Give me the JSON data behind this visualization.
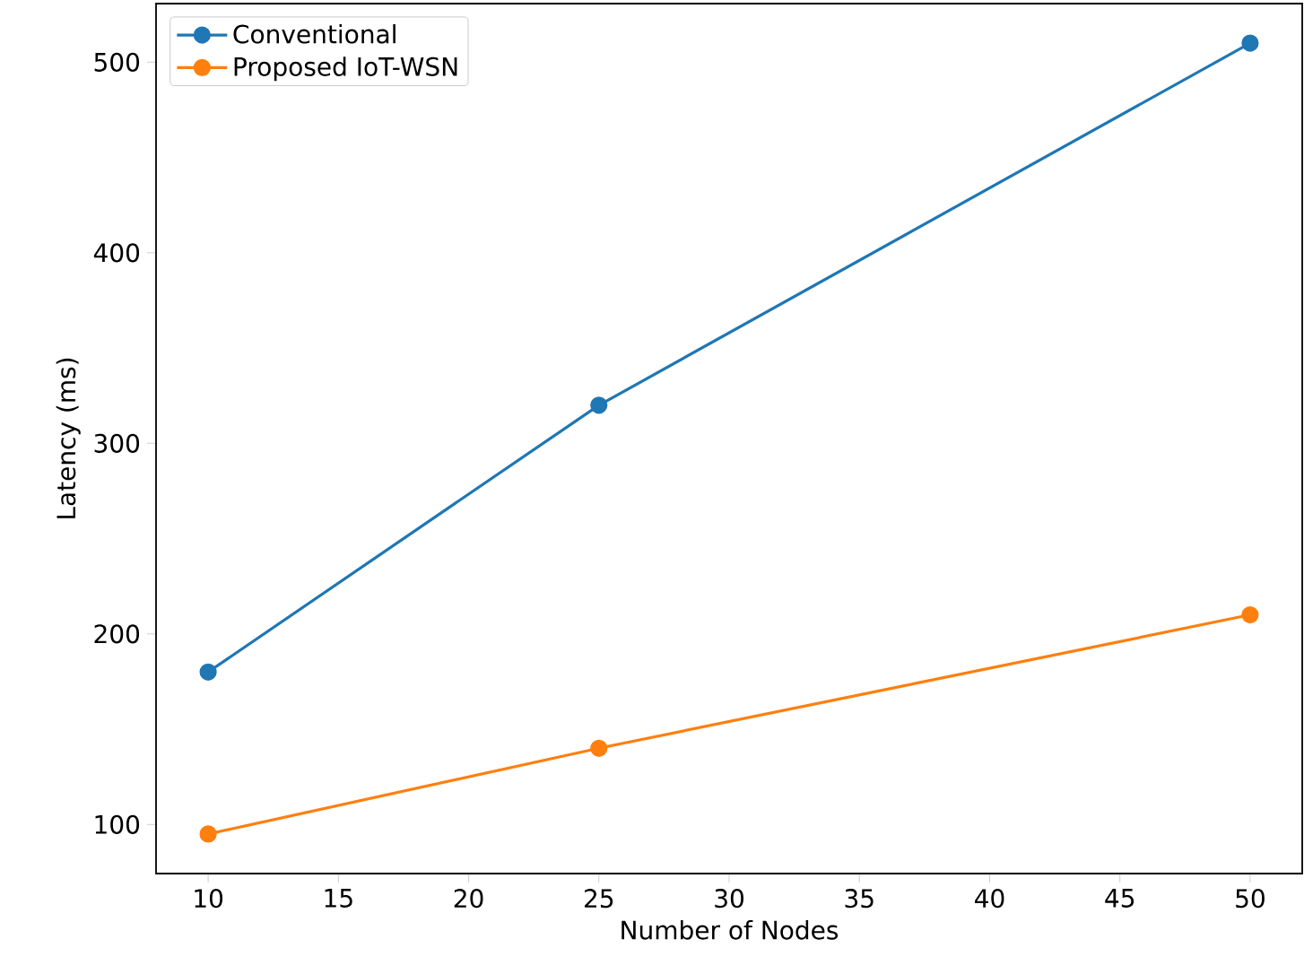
{
  "chart_data": {
    "type": "line",
    "xlabel": "Number of Nodes",
    "ylabel": "Latency (ms)",
    "x": [
      10,
      25,
      50
    ],
    "series": [
      {
        "name": "Conventional",
        "color": "#1f77b4",
        "values": [
          180,
          320,
          510
        ]
      },
      {
        "name": "Proposed IoT-WSN",
        "color": "#ff7f0e",
        "values": [
          95,
          140,
          210
        ]
      }
    ],
    "xlim": [
      8,
      52
    ],
    "ylim": [
      74.25,
      530.75
    ],
    "xticks": [
      10,
      15,
      20,
      25,
      30,
      35,
      40,
      45,
      50
    ],
    "yticks": [
      100,
      200,
      300,
      400,
      500
    ],
    "marker": "circle",
    "legend": "top left",
    "grid": false
  }
}
